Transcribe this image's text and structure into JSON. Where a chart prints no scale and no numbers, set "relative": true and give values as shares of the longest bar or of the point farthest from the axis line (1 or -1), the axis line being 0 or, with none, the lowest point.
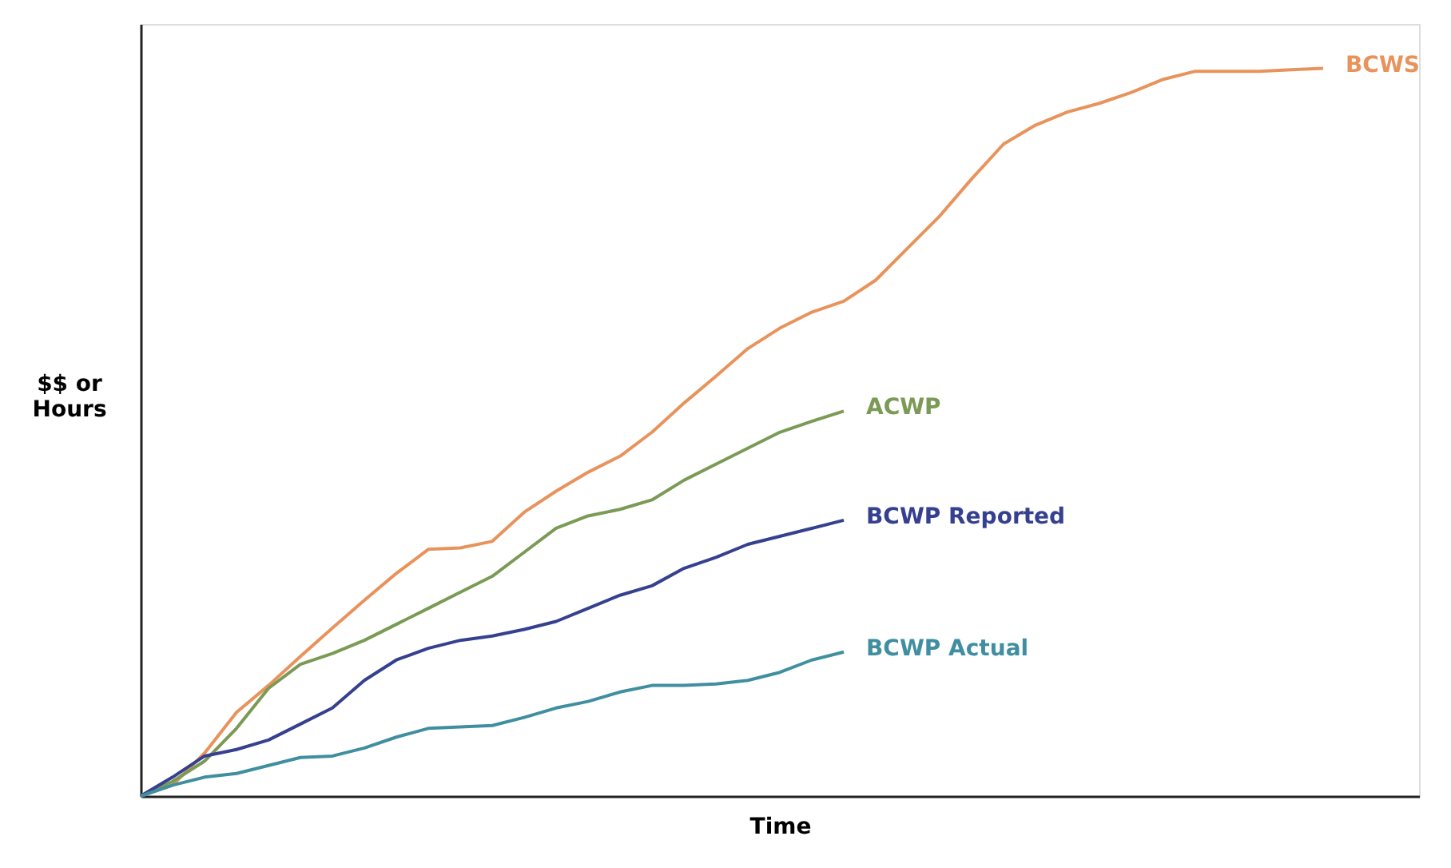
{
  "chart_data": {
    "type": "line",
    "relative": true,
    "xlabel": "Time",
    "ylabel": "$$ or\nHours",
    "grid": false,
    "marker": "none",
    "line_style": "solid",
    "categories": [
      null,
      null,
      null,
      null,
      null,
      null,
      null,
      null,
      null,
      null,
      null,
      null,
      null,
      null,
      null,
      null,
      null,
      null,
      null,
      null,
      null,
      null,
      null,
      null,
      null,
      null,
      null,
      null,
      null,
      null,
      null,
      null,
      null,
      null,
      null,
      null,
      null,
      null
    ],
    "series": [
      {
        "name": "BCWS",
        "color": "#e8935c",
        "values": [
          0,
          0.015,
          0.059,
          0.115,
          0.152,
          0.192,
          0.231,
          0.269,
          0.306,
          0.339,
          0.341,
          0.35,
          0.39,
          0.419,
          0.445,
          0.467,
          0.5,
          0.54,
          0.577,
          0.615,
          0.643,
          0.665,
          0.68,
          0.709,
          0.753,
          0.797,
          0.848,
          0.896,
          0.922,
          0.94,
          0.952,
          0.967,
          0.985,
          0.996,
          0.996,
          0.996,
          0.998,
          1
        ]
      },
      {
        "name": "ACWP",
        "color": "#7a9a55",
        "values": [
          0,
          0.02,
          0.048,
          0.093,
          0.148,
          0.181,
          0.196,
          0.214,
          0.236,
          0.258,
          0.28,
          0.302,
          0.335,
          0.368,
          0.385,
          0.394,
          0.407,
          0.434,
          0.456,
          0.478,
          0.5,
          0.515,
          0.529,
          null,
          null,
          null,
          null,
          null,
          null,
          null,
          null,
          null,
          null,
          null,
          null,
          null,
          null,
          null
        ]
      },
      {
        "name": "BCWP Reported",
        "color": "#35408f",
        "values": [
          0,
          0.026,
          0.055,
          0.064,
          0.077,
          0.099,
          0.121,
          0.159,
          0.187,
          0.203,
          0.214,
          0.22,
          0.229,
          0.24,
          0.258,
          0.276,
          0.289,
          0.313,
          0.328,
          0.346,
          0.357,
          0.368,
          0.379,
          null,
          null,
          null,
          null,
          null,
          null,
          null,
          null,
          null,
          null,
          null,
          null,
          null,
          null,
          null
        ]
      },
      {
        "name": "BCWP Actual",
        "color": "#3f8fa0",
        "values": [
          0,
          0.015,
          0.026,
          0.031,
          0.042,
          0.053,
          0.055,
          0.066,
          0.081,
          0.093,
          0.095,
          0.097,
          0.108,
          0.121,
          0.13,
          0.143,
          0.152,
          0.152,
          0.154,
          0.159,
          0.17,
          0.187,
          0.198,
          null,
          null,
          null,
          null,
          null,
          null,
          null,
          null,
          null,
          null,
          null,
          null,
          null,
          null,
          null
        ]
      }
    ]
  }
}
